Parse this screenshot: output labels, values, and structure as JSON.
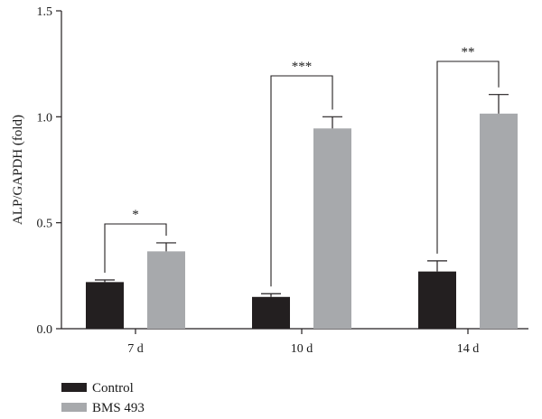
{
  "chart_data": {
    "type": "bar",
    "title": "",
    "xlabel": "",
    "ylabel": "ALP/GAPDH (fold)",
    "ylim": [
      0,
      1.5
    ],
    "yticks": [
      "0.0",
      "0.5",
      "1.0",
      "1.5"
    ],
    "yticks_values": [
      0,
      0.5,
      1.0,
      1.5
    ],
    "categories": [
      "7 d",
      "10 d",
      "14 d"
    ],
    "grid": false,
    "legend_position": "bottom-left",
    "series": [
      {
        "name": "Control",
        "color": "#231f20",
        "values": [
          0.22,
          0.15,
          0.27
        ],
        "errors": [
          0.01,
          0.015,
          0.05
        ]
      },
      {
        "name": "BMS 493",
        "color": "#a7a9ac",
        "values": [
          0.365,
          0.945,
          1.015
        ],
        "errors": [
          0.04,
          0.055,
          0.09
        ]
      }
    ],
    "significance": [
      {
        "category_index": 0,
        "label": "*"
      },
      {
        "category_index": 1,
        "label": "***"
      },
      {
        "category_index": 2,
        "label": "**"
      }
    ]
  }
}
